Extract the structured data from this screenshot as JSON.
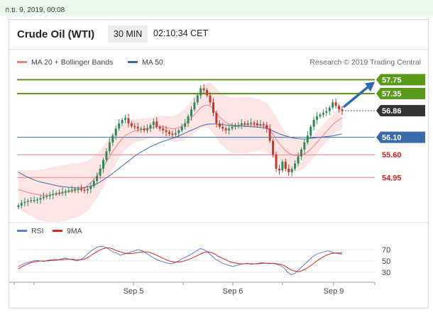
{
  "header": {
    "date_text": "ก.ย. 9, 2019, 00:08",
    "instrument": "Crude Oil (WTI)",
    "timeframe": "30 MIN",
    "time": "02:10:34 CET"
  },
  "legend": {
    "ma20": "MA 20 + Bollinger Bands",
    "ma50": "MA 50",
    "credit": "Research © 2019 Trading Central"
  },
  "rsi_legend": {
    "rsi": "RSI",
    "ma": "9MA"
  },
  "colors": {
    "resistance": "#5a9a1a",
    "support": "#f08080",
    "pivot": "#3a6aa8",
    "last": "#333333",
    "arrow": "#2f6aaa",
    "up": "#2e8b57",
    "down": "#c0392b",
    "ma20": "#f08080",
    "ma50": "#3a6aa8",
    "rsi": "#5b7fcf",
    "rsi_ma": "#dd2222"
  },
  "chart_data": [
    {
      "type": "candlestick",
      "levels": [
        {
          "label": "57.75",
          "value": 57.75,
          "kind": "resistance"
        },
        {
          "label": "57.35",
          "value": 57.35,
          "kind": "resistance"
        },
        {
          "label": "56.86",
          "value": 56.86,
          "kind": "last"
        },
        {
          "label": "56.10",
          "value": 56.1,
          "kind": "pivot"
        },
        {
          "label": "55.60",
          "value": 55.6,
          "kind": "support"
        },
        {
          "label": "54.95",
          "value": 54.95,
          "kind": "support"
        }
      ],
      "ylim": [
        53.9,
        58.0
      ],
      "x_ticks": [
        "Sep 5",
        "Sep 6",
        "Sep 9"
      ],
      "close_series": [
        54.15,
        54.22,
        54.25,
        54.28,
        54.3,
        54.3,
        54.32,
        54.36,
        54.4,
        54.42,
        54.45,
        54.48,
        54.5,
        54.52,
        54.54,
        54.56,
        54.58,
        54.6,
        54.62,
        54.62,
        54.6,
        54.58,
        54.62,
        54.7,
        54.85,
        55.0,
        55.2,
        55.45,
        55.7,
        55.95,
        56.15,
        56.35,
        56.5,
        56.6,
        56.65,
        56.5,
        56.42,
        56.4,
        56.35,
        56.35,
        56.3,
        56.35,
        56.45,
        56.55,
        56.4,
        56.35,
        56.3,
        56.25,
        56.2,
        56.18,
        56.22,
        56.3,
        56.4,
        56.5,
        56.7,
        56.9,
        57.1,
        57.3,
        57.5,
        57.45,
        57.3,
        57.1,
        56.8,
        56.5,
        56.4,
        56.35,
        56.3,
        56.35,
        56.4,
        56.45,
        56.45,
        56.5,
        56.48,
        56.5,
        56.52,
        56.5,
        56.45,
        56.48,
        56.45,
        56.35,
        56.0,
        55.6,
        55.2,
        55.15,
        55.4,
        55.2,
        55.1,
        55.2,
        55.35,
        55.55,
        55.75,
        55.95,
        56.15,
        56.4,
        56.6,
        56.7,
        56.75,
        56.8,
        56.85,
        56.95,
        57.1,
        57.0,
        56.9,
        56.86
      ],
      "ma20": [
        54.6,
        54.58,
        54.55,
        54.52,
        54.5,
        54.48,
        54.46,
        54.45,
        54.44,
        54.44,
        54.45,
        54.46,
        54.47,
        54.48,
        54.5,
        54.52,
        54.54,
        54.56,
        54.58,
        54.6,
        54.62,
        54.66,
        54.72,
        54.8,
        54.9,
        55.0,
        55.12,
        55.25,
        55.4,
        55.55,
        55.7,
        55.82,
        55.95,
        56.05,
        56.15,
        56.2,
        56.25,
        56.28,
        56.3,
        56.32,
        56.33,
        56.35,
        56.37,
        56.38,
        56.4,
        56.4,
        56.4,
        56.38,
        56.36,
        56.34,
        56.35,
        56.38,
        56.42,
        56.48,
        56.56,
        56.65,
        56.75,
        56.85,
        56.95,
        57.0,
        57.02,
        57.0,
        56.9,
        56.78,
        56.68,
        56.6,
        56.52,
        56.48,
        56.45,
        56.44,
        56.44,
        56.45,
        56.45,
        56.46,
        56.46,
        56.46,
        56.45,
        56.44,
        56.42,
        56.38,
        56.3,
        56.18,
        56.05,
        55.92,
        55.82,
        55.72,
        55.65,
        55.6,
        55.58,
        55.57,
        55.58,
        55.62,
        55.68,
        55.76,
        55.86,
        55.96,
        56.06,
        56.16,
        56.26,
        56.36,
        56.46,
        56.54,
        56.6,
        56.66
      ],
      "ma50": [
        55.1,
        55.05,
        55.0,
        54.96,
        54.92,
        54.88,
        54.85,
        54.82,
        54.8,
        54.78,
        54.76,
        54.74,
        54.72,
        54.7,
        54.69,
        54.68,
        54.67,
        54.66,
        54.65,
        54.65,
        54.65,
        54.66,
        54.68,
        54.7,
        54.73,
        54.77,
        54.82,
        54.88,
        54.94,
        55.0,
        55.07,
        55.14,
        55.21,
        55.28,
        55.35,
        55.42,
        55.49,
        55.56,
        55.62,
        55.68,
        55.73,
        55.78,
        55.83,
        55.87,
        55.91,
        55.95,
        55.98,
        56.01,
        56.04,
        56.07,
        56.1,
        56.14,
        56.18,
        56.22,
        56.26,
        56.3,
        56.34,
        56.38,
        56.42,
        56.45,
        56.47,
        56.48,
        56.48,
        56.48,
        56.47,
        56.46,
        56.45,
        56.44,
        56.43,
        56.42,
        56.42,
        56.42,
        56.41,
        56.41,
        56.4,
        56.4,
        56.39,
        56.38,
        56.37,
        56.35,
        56.32,
        56.28,
        56.24,
        56.2,
        56.17,
        56.14,
        56.11,
        56.09,
        56.07,
        56.06,
        56.05,
        56.05,
        56.06,
        56.07,
        56.08,
        56.09,
        56.1,
        56.11,
        56.12,
        56.13,
        56.14,
        56.16,
        56.18,
        56.2
      ]
    },
    {
      "type": "line",
      "y_ticks": [
        70,
        50,
        30
      ],
      "ylim": [
        20,
        85
      ],
      "series": [
        {
          "name": "RSI",
          "values": [
            40,
            44,
            46,
            48,
            50,
            51,
            50,
            49,
            51,
            52,
            53,
            52,
            54,
            55,
            53,
            52,
            50,
            52,
            56,
            62,
            68,
            72,
            75,
            76,
            74,
            70,
            66,
            64,
            60,
            62,
            64,
            66,
            68,
            70,
            68,
            64,
            60,
            56,
            52,
            50,
            48,
            46,
            45,
            47,
            50,
            54,
            57,
            60,
            64,
            68,
            72,
            70,
            66,
            60,
            54,
            50,
            46,
            44,
            42,
            40,
            42,
            44,
            45,
            46,
            44,
            45,
            46,
            47,
            46,
            45,
            46,
            44,
            42,
            38,
            30,
            26,
            28,
            34,
            40,
            46,
            52,
            58,
            62,
            64,
            66,
            68,
            66,
            64,
            63,
            62
          ]
        },
        {
          "name": "9MA",
          "values": [
            36,
            40,
            43,
            46,
            48,
            49,
            50,
            50,
            50,
            51,
            51,
            52,
            52,
            53,
            53,
            53,
            52,
            52,
            53,
            56,
            60,
            64,
            68,
            71,
            73,
            73,
            71,
            68,
            66,
            64,
            63,
            63,
            64,
            65,
            66,
            66,
            65,
            63,
            60,
            57,
            54,
            51,
            49,
            48,
            48,
            49,
            51,
            53,
            56,
            59,
            62,
            65,
            66,
            65,
            62,
            58,
            55,
            52,
            49,
            47,
            46,
            45,
            45,
            45,
            45,
            45,
            45,
            46,
            46,
            46,
            46,
            45,
            44,
            42,
            38,
            34,
            32,
            31,
            33,
            36,
            40,
            45,
            50,
            54,
            58,
            61,
            63,
            64,
            64,
            64
          ]
        }
      ]
    }
  ]
}
